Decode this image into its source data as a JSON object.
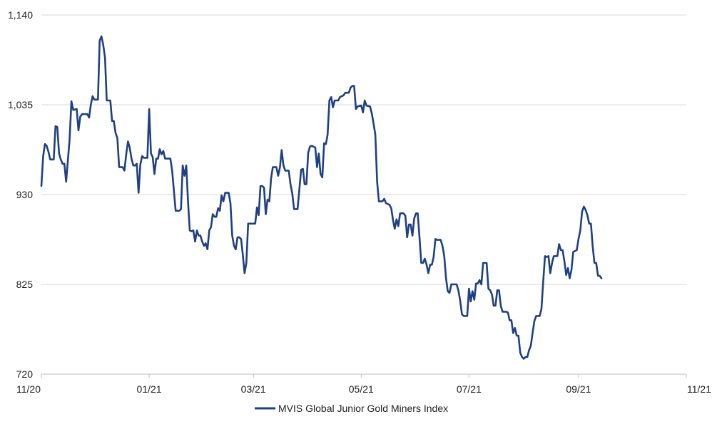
{
  "chart_data": {
    "type": "line",
    "title": "",
    "xlabel": "",
    "ylabel": "",
    "ylim": [
      720,
      1140
    ],
    "yticks": [
      720,
      825,
      930,
      1035,
      1140
    ],
    "ytick_labels": [
      "720",
      "825",
      "930",
      "1,035",
      "1,140"
    ],
    "xticks": [
      "2020-11-01",
      "2021-01-01",
      "2021-03-01",
      "2021-05-01",
      "2021-07-01",
      "2021-09-01",
      "2021-11-01"
    ],
    "xtick_labels": [
      "11/20",
      "01/21",
      "03/21",
      "05/21",
      "07/21",
      "09/21",
      "11/21"
    ],
    "grid": "horizontal",
    "legend_position": "bottom",
    "colors": {
      "series": "#1f4082",
      "grid": "#d9d9d9",
      "axis": "#bfbfbf"
    },
    "series": [
      {
        "name": "MVIS Global Junior Gold Miners Index",
        "points": [
          [
            "2020-11-01",
            940
          ],
          [
            "2020-11-02",
            975
          ],
          [
            "2020-11-03",
            989
          ],
          [
            "2020-11-04",
            987
          ],
          [
            "2020-11-05",
            980
          ],
          [
            "2020-11-06",
            971
          ],
          [
            "2020-11-08",
            971
          ],
          [
            "2020-11-09",
            1010
          ],
          [
            "2020-11-10",
            1009
          ],
          [
            "2020-11-11",
            978
          ],
          [
            "2020-11-12",
            971
          ],
          [
            "2020-11-13",
            966
          ],
          [
            "2020-11-14",
            966
          ],
          [
            "2020-11-15",
            945
          ],
          [
            "2020-11-17",
            995
          ],
          [
            "2020-11-18",
            1039
          ],
          [
            "2020-11-19",
            1029
          ],
          [
            "2020-11-21",
            1030
          ],
          [
            "2020-11-22",
            1005
          ],
          [
            "2020-11-23",
            1021
          ],
          [
            "2020-11-24",
            1024
          ],
          [
            "2020-11-27",
            1024
          ],
          [
            "2020-11-28",
            1020
          ],
          [
            "2020-11-29",
            1035
          ],
          [
            "2020-11-30",
            1045
          ],
          [
            "2020-12-01",
            1041
          ],
          [
            "2020-12-03",
            1041
          ],
          [
            "2020-12-04",
            1110
          ],
          [
            "2020-12-05",
            1115
          ],
          [
            "2020-12-06",
            1105
          ],
          [
            "2020-12-07",
            1090
          ],
          [
            "2020-12-08",
            1040
          ],
          [
            "2020-12-10",
            1040
          ],
          [
            "2020-12-11",
            1016
          ],
          [
            "2020-12-12",
            1016
          ],
          [
            "2020-12-13",
            1002
          ],
          [
            "2020-12-14",
            996
          ],
          [
            "2020-12-15",
            962
          ],
          [
            "2020-12-17",
            962
          ],
          [
            "2020-12-18",
            958
          ],
          [
            "2020-12-19",
            977
          ],
          [
            "2020-12-20",
            992
          ],
          [
            "2020-12-21",
            985
          ],
          [
            "2020-12-22",
            972
          ],
          [
            "2020-12-23",
            964
          ],
          [
            "2020-12-24",
            964
          ],
          [
            "2020-12-25",
            966
          ],
          [
            "2020-12-26",
            932
          ],
          [
            "2020-12-27",
            965
          ],
          [
            "2020-12-28",
            975
          ],
          [
            "2020-12-29",
            973
          ],
          [
            "2020-12-31",
            973
          ],
          [
            "2021-01-01",
            1030
          ],
          [
            "2021-01-02",
            978
          ],
          [
            "2021-01-03",
            974
          ],
          [
            "2021-01-04",
            954
          ],
          [
            "2021-01-05",
            972
          ],
          [
            "2021-01-06",
            972
          ],
          [
            "2021-01-07",
            983
          ],
          [
            "2021-01-08",
            977
          ],
          [
            "2021-01-09",
            981
          ],
          [
            "2021-01-10",
            972
          ],
          [
            "2021-01-13",
            972
          ],
          [
            "2021-01-14",
            958
          ],
          [
            "2021-01-16",
            911
          ],
          [
            "2021-01-18",
            911
          ],
          [
            "2021-01-19",
            913
          ],
          [
            "2021-01-20",
            964
          ],
          [
            "2021-01-21",
            952
          ],
          [
            "2021-01-22",
            964
          ],
          [
            "2021-01-23",
            921
          ],
          [
            "2021-01-24",
            888
          ],
          [
            "2021-01-25",
            887
          ],
          [
            "2021-01-26",
            888
          ],
          [
            "2021-01-27",
            875
          ],
          [
            "2021-01-28",
            888
          ],
          [
            "2021-01-29",
            882
          ],
          [
            "2021-01-30",
            882
          ],
          [
            "2021-01-31",
            875
          ],
          [
            "2021-02-01",
            870
          ],
          [
            "2021-02-02",
            873
          ],
          [
            "2021-02-03",
            866
          ],
          [
            "2021-02-04",
            888
          ],
          [
            "2021-02-05",
            892
          ],
          [
            "2021-02-06",
            907
          ],
          [
            "2021-02-07",
            904
          ],
          [
            "2021-02-08",
            904
          ],
          [
            "2021-02-09",
            914
          ],
          [
            "2021-02-10",
            911
          ],
          [
            "2021-02-11",
            929
          ],
          [
            "2021-02-12",
            922
          ],
          [
            "2021-02-13",
            932
          ],
          [
            "2021-02-15",
            932
          ],
          [
            "2021-02-16",
            920
          ],
          [
            "2021-02-17",
            882
          ],
          [
            "2021-02-18",
            870
          ],
          [
            "2021-02-19",
            866
          ],
          [
            "2021-02-20",
            880
          ],
          [
            "2021-02-21",
            880
          ],
          [
            "2021-02-22",
            878
          ],
          [
            "2021-02-23",
            860
          ],
          [
            "2021-02-24",
            838
          ],
          [
            "2021-02-25",
            850
          ],
          [
            "2021-02-26",
            896
          ],
          [
            "2021-03-02",
            896
          ],
          [
            "2021-03-03",
            915
          ],
          [
            "2021-03-04",
            906
          ],
          [
            "2021-03-05",
            940
          ],
          [
            "2021-03-06",
            940
          ],
          [
            "2021-03-07",
            938
          ],
          [
            "2021-03-08",
            907
          ],
          [
            "2021-03-09",
            924
          ],
          [
            "2021-03-10",
            922
          ],
          [
            "2021-03-11",
            949
          ],
          [
            "2021-03-12",
            962
          ],
          [
            "2021-03-13",
            962
          ],
          [
            "2021-03-14",
            962
          ],
          [
            "2021-03-15",
            952
          ],
          [
            "2021-03-16",
            962
          ],
          [
            "2021-03-17",
            982
          ],
          [
            "2021-03-18",
            964
          ],
          [
            "2021-03-19",
            958
          ],
          [
            "2021-03-21",
            958
          ],
          [
            "2021-03-22",
            942
          ],
          [
            "2021-03-23",
            931
          ],
          [
            "2021-03-24",
            913
          ],
          [
            "2021-03-26",
            913
          ],
          [
            "2021-03-27",
            936
          ],
          [
            "2021-03-28",
            959
          ],
          [
            "2021-03-29",
            960
          ],
          [
            "2021-03-30",
            942
          ],
          [
            "2021-03-31",
            942
          ],
          [
            "2021-04-01",
            979
          ],
          [
            "2021-04-02",
            986
          ],
          [
            "2021-04-03",
            987
          ],
          [
            "2021-04-05",
            985
          ],
          [
            "2021-04-06",
            962
          ],
          [
            "2021-04-07",
            978
          ],
          [
            "2021-04-08",
            954
          ],
          [
            "2021-04-09",
            950
          ],
          [
            "2021-04-10",
            990
          ],
          [
            "2021-04-11",
            989
          ],
          [
            "2021-04-12",
            1000
          ],
          [
            "2021-04-13",
            1040
          ],
          [
            "2021-04-14",
            1044
          ],
          [
            "2021-04-15",
            1032
          ],
          [
            "2021-04-16",
            1040
          ],
          [
            "2021-04-18",
            1040
          ],
          [
            "2021-04-19",
            1044
          ],
          [
            "2021-04-21",
            1046
          ],
          [
            "2021-04-22",
            1049
          ],
          [
            "2021-04-24",
            1049
          ],
          [
            "2021-04-25",
            1055
          ],
          [
            "2021-04-26",
            1057
          ],
          [
            "2021-04-27",
            1057
          ],
          [
            "2021-04-28",
            1030
          ],
          [
            "2021-04-29",
            1033
          ],
          [
            "2021-05-01",
            1034
          ],
          [
            "2021-05-02",
            1026
          ],
          [
            "2021-05-03",
            1040
          ],
          [
            "2021-05-04",
            1034
          ],
          [
            "2021-05-06",
            1033
          ],
          [
            "2021-05-07",
            1025
          ],
          [
            "2021-05-08",
            1013
          ],
          [
            "2021-05-09",
            1000
          ],
          [
            "2021-05-10",
            945
          ],
          [
            "2021-05-11",
            922
          ],
          [
            "2021-05-13",
            922
          ],
          [
            "2021-05-14",
            925
          ],
          [
            "2021-05-15",
            920
          ],
          [
            "2021-05-17",
            918
          ],
          [
            "2021-05-18",
            914
          ],
          [
            "2021-05-19",
            900
          ],
          [
            "2021-05-20",
            890
          ],
          [
            "2021-05-21",
            901
          ],
          [
            "2021-05-22",
            893
          ],
          [
            "2021-05-23",
            908
          ],
          [
            "2021-05-25",
            908
          ],
          [
            "2021-05-26",
            905
          ],
          [
            "2021-05-27",
            880
          ],
          [
            "2021-05-28",
            895
          ],
          [
            "2021-05-29",
            895
          ],
          [
            "2021-05-30",
            882
          ],
          [
            "2021-05-31",
            902
          ],
          [
            "2021-06-01",
            908
          ],
          [
            "2021-06-02",
            908
          ],
          [
            "2021-06-03",
            880
          ],
          [
            "2021-06-04",
            850
          ],
          [
            "2021-06-05",
            850
          ],
          [
            "2021-06-06",
            855
          ],
          [
            "2021-06-07",
            848
          ],
          [
            "2021-06-08",
            838
          ],
          [
            "2021-06-09",
            848
          ],
          [
            "2021-06-10",
            848
          ],
          [
            "2021-06-11",
            857
          ],
          [
            "2021-06-12",
            878
          ],
          [
            "2021-06-13",
            877
          ],
          [
            "2021-06-15",
            877
          ],
          [
            "2021-06-16",
            870
          ],
          [
            "2021-06-17",
            858
          ],
          [
            "2021-06-18",
            832
          ],
          [
            "2021-06-19",
            817
          ],
          [
            "2021-06-20",
            815
          ],
          [
            "2021-06-21",
            825
          ],
          [
            "2021-06-22",
            825
          ],
          [
            "2021-06-24",
            825
          ],
          [
            "2021-06-25",
            818
          ],
          [
            "2021-06-26",
            806
          ],
          [
            "2021-06-27",
            790
          ],
          [
            "2021-06-28",
            788
          ],
          [
            "2021-06-30",
            788
          ],
          [
            "2021-07-01",
            820
          ],
          [
            "2021-07-02",
            805
          ],
          [
            "2021-07-03",
            817
          ],
          [
            "2021-07-04",
            807
          ],
          [
            "2021-07-05",
            826
          ],
          [
            "2021-07-06",
            826
          ],
          [
            "2021-07-07",
            830
          ],
          [
            "2021-07-08",
            825
          ],
          [
            "2021-07-09",
            850
          ],
          [
            "2021-07-11",
            850
          ],
          [
            "2021-07-12",
            820
          ],
          [
            "2021-07-13",
            818
          ],
          [
            "2021-07-14",
            813
          ],
          [
            "2021-07-15",
            800
          ],
          [
            "2021-07-16",
            800
          ],
          [
            "2021-07-17",
            818
          ],
          [
            "2021-07-18",
            818
          ],
          [
            "2021-07-19",
            800
          ],
          [
            "2021-07-20",
            793
          ],
          [
            "2021-07-22",
            793
          ],
          [
            "2021-07-23",
            792
          ],
          [
            "2021-07-24",
            783
          ],
          [
            "2021-07-25",
            783
          ],
          [
            "2021-07-26",
            768
          ],
          [
            "2021-07-27",
            774
          ],
          [
            "2021-07-28",
            765
          ],
          [
            "2021-07-29",
            765
          ],
          [
            "2021-07-30",
            745
          ],
          [
            "2021-07-31",
            740
          ],
          [
            "2021-08-01",
            738
          ],
          [
            "2021-08-02",
            740
          ],
          [
            "2021-08-03",
            740
          ],
          [
            "2021-08-04",
            748
          ],
          [
            "2021-08-05",
            753
          ],
          [
            "2021-08-06",
            768
          ],
          [
            "2021-08-07",
            782
          ],
          [
            "2021-08-08",
            788
          ],
          [
            "2021-08-10",
            788
          ],
          [
            "2021-08-11",
            796
          ],
          [
            "2021-08-12",
            828
          ],
          [
            "2021-08-13",
            858
          ],
          [
            "2021-08-14",
            857
          ],
          [
            "2021-08-15",
            858
          ],
          [
            "2021-08-16",
            838
          ],
          [
            "2021-08-17",
            850
          ],
          [
            "2021-08-18",
            858
          ],
          [
            "2021-08-20",
            858
          ],
          [
            "2021-08-21",
            872
          ],
          [
            "2021-08-22",
            865
          ],
          [
            "2021-08-23",
            865
          ],
          [
            "2021-08-24",
            852
          ],
          [
            "2021-08-25",
            836
          ],
          [
            "2021-08-26",
            844
          ],
          [
            "2021-08-27",
            832
          ],
          [
            "2021-08-28",
            842
          ],
          [
            "2021-08-29",
            863
          ],
          [
            "2021-08-31",
            865
          ],
          [
            "2021-09-01",
            878
          ],
          [
            "2021-09-02",
            888
          ],
          [
            "2021-09-03",
            910
          ],
          [
            "2021-09-04",
            916
          ],
          [
            "2021-09-05",
            912
          ],
          [
            "2021-09-06",
            906
          ],
          [
            "2021-09-07",
            896
          ],
          [
            "2021-09-08",
            896
          ],
          [
            "2021-09-09",
            870
          ],
          [
            "2021-09-10",
            850
          ],
          [
            "2021-09-11",
            850
          ],
          [
            "2021-09-12",
            835
          ],
          [
            "2021-09-13",
            835
          ],
          [
            "2021-09-14",
            832
          ]
        ]
      }
    ]
  }
}
